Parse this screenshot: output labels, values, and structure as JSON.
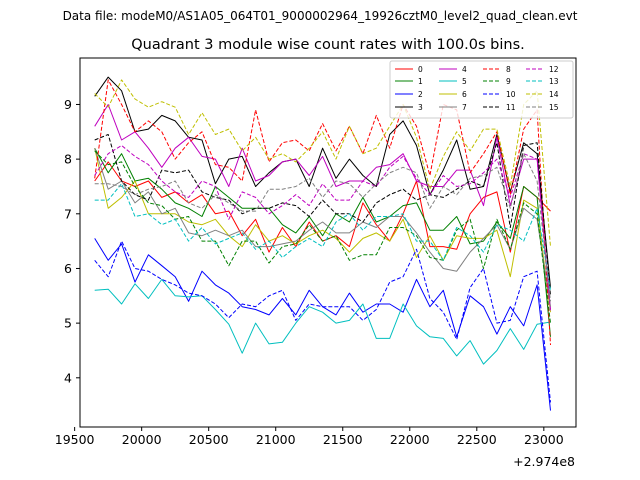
{
  "suptitle": "Data file: modeM0/AS1A05_064T01_9000002964_19926cztM0_level2_quad_clean.evt",
  "chart_data": {
    "type": "line",
    "title": "Quadrant 3 module wise count rates with 100.0s bins.",
    "xlabel": "",
    "ylabel": "",
    "x_offset_label": "+2.974e8",
    "xlim": [
      19540,
      23240
    ],
    "ylim": [
      3.1,
      9.85
    ],
    "xticks": [
      19500,
      20000,
      20500,
      21000,
      21500,
      22000,
      22500,
      23000
    ],
    "yticks": [
      4,
      5,
      6,
      7,
      8,
      9
    ],
    "x": [
      19650,
      19750,
      19850,
      19950,
      20050,
      20150,
      20250,
      20350,
      20450,
      20550,
      20650,
      20750,
      20850,
      20950,
      21050,
      21150,
      21250,
      21350,
      21450,
      21550,
      21650,
      21750,
      21850,
      21950,
      22050,
      22150,
      22250,
      22350,
      22450,
      22550,
      22650,
      22750,
      22850,
      22950,
      23050
    ],
    "series": [
      {
        "name": "0",
        "color": "#ff0000",
        "dash": false,
        "values": [
          7.6,
          7.95,
          7.6,
          7.5,
          7.6,
          7.3,
          7.4,
          7.2,
          7.35,
          7.0,
          7.05,
          6.6,
          6.9,
          6.3,
          6.75,
          6.4,
          6.85,
          6.5,
          6.6,
          6.4,
          7.2,
          6.8,
          6.5,
          7.0,
          7.6,
          6.4,
          6.4,
          6.35,
          7.0,
          7.3,
          7.4,
          6.3,
          7.5,
          7.3,
          7.05
        ]
      },
      {
        "name": "1",
        "color": "#008000",
        "dash": false,
        "values": [
          8.2,
          7.75,
          8.1,
          7.6,
          7.65,
          7.45,
          7.2,
          7.1,
          6.95,
          7.5,
          7.3,
          7.1,
          7.1,
          7.1,
          6.8,
          6.65,
          6.95,
          6.6,
          7.0,
          6.85,
          7.3,
          6.85,
          6.95,
          7.15,
          7.2,
          6.7,
          6.7,
          6.95,
          6.45,
          6.5,
          6.85,
          6.55,
          7.5,
          7.3,
          4.75
        ]
      },
      {
        "name": "2",
        "color": "#0000ff",
        "dash": false,
        "values": [
          6.55,
          6.15,
          6.45,
          5.75,
          6.25,
          6.05,
          5.85,
          5.4,
          5.95,
          5.7,
          5.55,
          5.3,
          5.25,
          5.15,
          5.45,
          5.15,
          5.6,
          5.3,
          5.15,
          5.55,
          5.2,
          5.35,
          5.35,
          5.2,
          5.8,
          5.3,
          5.6,
          4.75,
          5.5,
          5.3,
          4.8,
          5.3,
          4.95,
          5.7,
          3.4
        ]
      },
      {
        "name": "3",
        "color": "#000000",
        "dash": false,
        "values": [
          9.15,
          9.5,
          9.25,
          8.5,
          8.55,
          8.8,
          8.7,
          8.4,
          8.35,
          7.55,
          8.0,
          8.05,
          7.5,
          7.75,
          7.95,
          8.0,
          7.5,
          8.2,
          7.65,
          8.0,
          7.7,
          7.5,
          8.45,
          8.7,
          8.25,
          7.35,
          7.8,
          8.35,
          7.45,
          7.5,
          8.45,
          7.4,
          8.3,
          8.1,
          5.65
        ]
      },
      {
        "name": "4",
        "color": "#bf00bf",
        "dash": false,
        "values": [
          8.6,
          9.0,
          8.35,
          8.5,
          8.2,
          7.85,
          8.2,
          8.4,
          8.05,
          8.0,
          7.5,
          8.2,
          7.6,
          7.7,
          7.95,
          8.0,
          7.7,
          8.05,
          7.5,
          7.6,
          7.6,
          7.85,
          7.9,
          8.1,
          7.6,
          7.5,
          7.5,
          7.8,
          7.8,
          7.15,
          8.4,
          7.15,
          8.0,
          8.0,
          5.25
        ]
      },
      {
        "name": "5",
        "color": "#00bfbf",
        "dash": false,
        "values": [
          5.6,
          5.62,
          5.35,
          5.72,
          5.45,
          5.8,
          5.5,
          5.48,
          5.5,
          5.25,
          4.98,
          4.45,
          5.0,
          4.62,
          4.65,
          5.0,
          5.3,
          5.2,
          5.0,
          5.05,
          5.35,
          4.72,
          4.72,
          5.35,
          4.95,
          4.75,
          4.72,
          4.4,
          4.68,
          4.25,
          4.5,
          4.9,
          4.52,
          4.98,
          5.02
        ]
      },
      {
        "name": "6",
        "color": "#bfbf00",
        "dash": false,
        "values": [
          8.2,
          7.1,
          7.3,
          7.6,
          7.0,
          7.0,
          7.0,
          6.85,
          6.8,
          6.9,
          6.6,
          6.4,
          6.8,
          6.5,
          6.6,
          6.45,
          6.6,
          6.7,
          6.55,
          6.3,
          6.55,
          6.65,
          6.5,
          6.9,
          6.2,
          6.6,
          6.15,
          6.6,
          6.55,
          6.55,
          6.7,
          5.85,
          7.25,
          7.1,
          5.2
        ]
      },
      {
        "name": "7",
        "color": "#808080",
        "dash": false,
        "values": [
          8.2,
          7.45,
          7.6,
          7.2,
          7.4,
          7.0,
          7.1,
          6.65,
          6.6,
          6.7,
          6.6,
          6.7,
          6.4,
          6.4,
          6.45,
          6.5,
          6.7,
          6.85,
          6.65,
          6.65,
          6.85,
          6.75,
          6.95,
          6.95,
          6.65,
          6.3,
          6.0,
          5.95,
          6.3,
          6.55,
          6.8,
          6.35,
          7.1,
          6.9,
          5.3
        ]
      },
      {
        "name": "8",
        "color": "#ff0000",
        "dash": true,
        "values": [
          7.65,
          9.45,
          9.0,
          8.5,
          8.7,
          8.5,
          8.0,
          8.3,
          8.5,
          7.9,
          7.85,
          7.6,
          8.9,
          7.95,
          8.3,
          8.35,
          8.15,
          8.65,
          8.15,
          8.6,
          8.1,
          8.8,
          8.2,
          9.0,
          8.6,
          7.7,
          9.0,
          8.9,
          7.75,
          8.1,
          8.5,
          7.35,
          8.55,
          8.9,
          4.6
        ]
      },
      {
        "name": "9",
        "color": "#008000",
        "dash": true,
        "values": [
          8.15,
          7.9,
          7.95,
          7.5,
          7.2,
          7.15,
          6.9,
          6.95,
          6.5,
          6.5,
          6.05,
          6.5,
          6.5,
          6.1,
          6.4,
          6.45,
          6.8,
          6.5,
          6.6,
          6.15,
          6.25,
          6.25,
          6.75,
          6.75,
          6.6,
          6.2,
          6.15,
          6.7,
          6.9,
          6.0,
          6.9,
          6.35,
          7.2,
          7.0,
          5.0
        ]
      },
      {
        "name": "10",
        "color": "#0000ff",
        "dash": true,
        "values": [
          6.15,
          5.85,
          6.5,
          6.0,
          5.95,
          5.8,
          5.7,
          5.55,
          5.5,
          5.35,
          5.1,
          5.35,
          5.3,
          5.5,
          5.6,
          5.05,
          5.35,
          5.3,
          5.3,
          5.3,
          5.05,
          5.25,
          5.75,
          5.85,
          6.35,
          5.45,
          5.2,
          4.7,
          5.65,
          6.0,
          5.0,
          5.05,
          5.85,
          5.95,
          3.55
        ]
      },
      {
        "name": "11",
        "color": "#000000",
        "dash": true,
        "values": [
          8.35,
          8.45,
          7.6,
          7.35,
          7.25,
          7.8,
          7.75,
          7.8,
          7.4,
          7.3,
          7.25,
          7.0,
          7.1,
          7.1,
          7.2,
          7.15,
          6.95,
          7.25,
          7.0,
          7.0,
          6.85,
          7.2,
          7.35,
          7.45,
          7.25,
          7.35,
          7.3,
          7.45,
          7.6,
          7.5,
          8.3,
          6.75,
          8.25,
          8.3,
          5.5
        ]
      },
      {
        "name": "12",
        "color": "#bf00bf",
        "dash": true,
        "values": [
          7.7,
          8.1,
          8.25,
          8.05,
          7.9,
          7.6,
          7.4,
          7.3,
          7.6,
          7.5,
          6.9,
          7.4,
          7.3,
          7.0,
          7.15,
          7.35,
          7.15,
          7.55,
          7.25,
          7.25,
          7.6,
          7.5,
          7.85,
          8.05,
          7.65,
          7.35,
          7.7,
          7.5,
          7.55,
          7.75,
          8.0,
          7.3,
          8.1,
          8.0,
          5.2
        ]
      },
      {
        "name": "13",
        "color": "#00bfbf",
        "dash": true,
        "values": [
          7.25,
          7.25,
          7.55,
          6.95,
          7.0,
          6.8,
          6.9,
          6.5,
          6.75,
          6.45,
          6.55,
          6.65,
          6.35,
          6.5,
          6.2,
          6.4,
          6.55,
          6.4,
          6.85,
          7.0,
          6.7,
          6.95,
          6.95,
          7.0,
          6.5,
          6.5,
          6.15,
          6.75,
          6.6,
          6.3,
          6.8,
          6.7,
          6.5,
          7.1,
          5.6
        ]
      },
      {
        "name": "14",
        "color": "#bfbf00",
        "dash": true,
        "values": [
          9.2,
          8.95,
          9.45,
          9.1,
          8.95,
          9.05,
          8.95,
          8.45,
          8.85,
          8.45,
          8.55,
          8.15,
          8.4,
          8.0,
          8.1,
          7.95,
          8.2,
          8.5,
          8.0,
          8.6,
          8.1,
          8.2,
          8.6,
          9.0,
          8.4,
          7.45,
          8.05,
          8.5,
          8.15,
          8.55,
          8.55,
          7.5,
          9.0,
          9.25,
          6.4
        ]
      },
      {
        "name": "15",
        "color": "#808080",
        "dash": true,
        "values": [
          7.55,
          7.55,
          7.5,
          7.35,
          7.45,
          7.5,
          7.6,
          7.2,
          7.1,
          7.35,
          7.2,
          7.05,
          7.05,
          7.45,
          7.45,
          7.5,
          7.65,
          7.3,
          7.6,
          7.55,
          7.3,
          7.55,
          7.75,
          7.85,
          7.75,
          7.1,
          7.5,
          7.35,
          7.65,
          7.7,
          7.85,
          7.1,
          8.1,
          7.6,
          5.4
        ]
      }
    ]
  }
}
